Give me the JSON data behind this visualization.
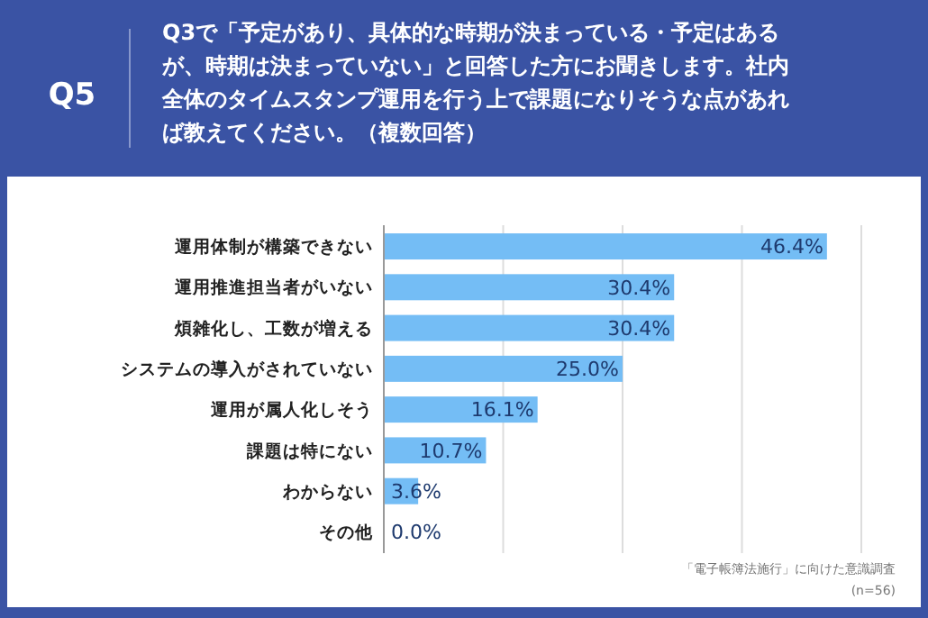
{
  "chart_data": {
    "type": "bar",
    "orientation": "horizontal",
    "title": "Q5",
    "subtitle": "Q3で「予定があり、具体的な時期が決まっている・予定はあるが、時期は決まっていない」と回答した方にお聞きします。社内全体のタイムスタンプ運用を行う上で課題になりそうな点があれば教えてください。（複数回答）",
    "categories": [
      "運用体制が構築できない",
      "運用推進担当者がいない",
      "煩雑化し、工数が増える",
      "システムの導入がされていない",
      "運用が属人化しそう",
      "課題は特にない",
      "わからない",
      "その他"
    ],
    "values": [
      46.4,
      30.4,
      30.4,
      25.0,
      16.1,
      10.7,
      3.6,
      0.0
    ],
    "value_labels": [
      "46.4%",
      "30.4%",
      "30.4%",
      "25.0%",
      "16.1%",
      "10.7%",
      "3.6%",
      "0.0%"
    ],
    "color": "#74bdf5",
    "xlim": [
      0,
      50
    ],
    "xticks": [
      {
        "value": 0,
        "label": null
      },
      {
        "value": 12.5,
        "label": null
      },
      {
        "value": 25,
        "label": null
      },
      {
        "value": 37.5,
        "label": null
      },
      {
        "value": 50,
        "label": null
      }
    ],
    "grid": "x",
    "tick_labels": "y",
    "annotations": [
      "「電子帳簿法施行」に向けた意識調査",
      "(n=56)"
    ]
  }
}
